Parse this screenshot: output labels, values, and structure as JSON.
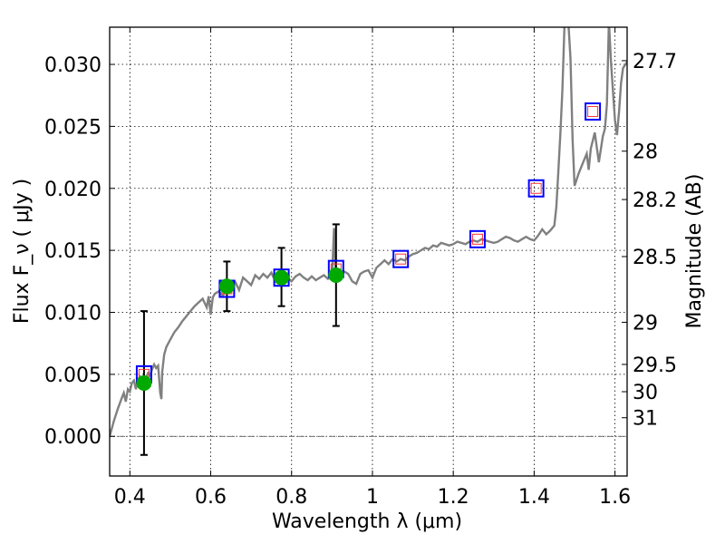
{
  "chart_data": {
    "type": "scatter",
    "xlabel": "Wavelength  λ (μm)",
    "ylabel": "Flux  F_ν  ( μJy )",
    "y2label": "Magnitude (AB)",
    "xlim": [
      0.35,
      1.63
    ],
    "ylim": [
      -0.0032,
      0.033
    ],
    "x_ticks": [
      0.4,
      0.6,
      0.8,
      1.0,
      1.2,
      1.4,
      1.6
    ],
    "x_tick_labels": [
      "0.4",
      "0.6",
      "0.8",
      "1",
      "1.2",
      "1.4",
      "1.6"
    ],
    "y_ticks": [
      0.0,
      0.005,
      0.01,
      0.015,
      0.02,
      0.025,
      0.03
    ],
    "y_tick_labels": [
      "0.000",
      "0.005",
      "0.010",
      "0.015",
      "0.020",
      "0.025",
      "0.030"
    ],
    "magnitude_ticks": [
      {
        "label": "27.7",
        "flux": 0.0303
      },
      {
        "label": "28",
        "flux": 0.023
      },
      {
        "label": "28.2",
        "flux": 0.0191
      },
      {
        "label": "28.5",
        "flux": 0.0145
      },
      {
        "label": "29",
        "flux": 0.0092
      },
      {
        "label": "29.5",
        "flux": 0.0058
      },
      {
        "label": "30",
        "flux": 0.0036
      },
      {
        "label": "31",
        "flux": 0.0015
      }
    ],
    "grid": true,
    "zero_line": true,
    "series": [
      {
        "kind": "model_spectrum",
        "color": "#808080",
        "points": [
          [
            0.35,
            0.0
          ],
          [
            0.36,
            0.0012
          ],
          [
            0.37,
            0.0022
          ],
          [
            0.38,
            0.0031
          ],
          [
            0.385,
            0.0035
          ],
          [
            0.39,
            0.0028
          ],
          [
            0.395,
            0.0038
          ],
          [
            0.4,
            0.0036
          ],
          [
            0.405,
            0.0043
          ],
          [
            0.41,
            0.0045
          ],
          [
            0.415,
            0.0038
          ],
          [
            0.42,
            0.0046
          ],
          [
            0.425,
            0.0048
          ],
          [
            0.43,
            0.0044
          ],
          [
            0.435,
            0.0042
          ],
          [
            0.44,
            0.0047
          ],
          [
            0.445,
            0.0051
          ],
          [
            0.45,
            0.0049
          ],
          [
            0.455,
            0.0054
          ],
          [
            0.46,
            0.0058
          ],
          [
            0.465,
            0.0055
          ],
          [
            0.47,
            0.0057
          ],
          [
            0.475,
            0.0035
          ],
          [
            0.478,
            0.003
          ],
          [
            0.48,
            0.0052
          ],
          [
            0.485,
            0.0066
          ],
          [
            0.49,
            0.0072
          ],
          [
            0.5,
            0.0078
          ],
          [
            0.51,
            0.0084
          ],
          [
            0.52,
            0.0088
          ],
          [
            0.53,
            0.0093
          ],
          [
            0.54,
            0.0097
          ],
          [
            0.55,
            0.0101
          ],
          [
            0.56,
            0.0105
          ],
          [
            0.57,
            0.0108
          ],
          [
            0.58,
            0.0111
          ],
          [
            0.59,
            0.0104
          ],
          [
            0.595,
            0.0113
          ],
          [
            0.6,
            0.0098
          ],
          [
            0.605,
            0.0112
          ],
          [
            0.61,
            0.0115
          ],
          [
            0.62,
            0.0117
          ],
          [
            0.63,
            0.0113
          ],
          [
            0.64,
            0.012
          ],
          [
            0.65,
            0.0122
          ],
          [
            0.66,
            0.0125
          ],
          [
            0.67,
            0.0118
          ],
          [
            0.68,
            0.0128
          ],
          [
            0.69,
            0.0125
          ],
          [
            0.7,
            0.0122
          ],
          [
            0.71,
            0.013
          ],
          [
            0.72,
            0.0127
          ],
          [
            0.73,
            0.0131
          ],
          [
            0.74,
            0.0128
          ],
          [
            0.75,
            0.0132
          ],
          [
            0.76,
            0.0125
          ],
          [
            0.77,
            0.0127
          ],
          [
            0.78,
            0.0131
          ],
          [
            0.79,
            0.0128
          ],
          [
            0.8,
            0.0125
          ],
          [
            0.81,
            0.0129
          ],
          [
            0.82,
            0.0131
          ],
          [
            0.83,
            0.0128
          ],
          [
            0.84,
            0.0126
          ],
          [
            0.85,
            0.0129
          ],
          [
            0.86,
            0.0126
          ],
          [
            0.87,
            0.0128
          ],
          [
            0.88,
            0.013
          ],
          [
            0.89,
            0.0127
          ],
          [
            0.9,
            0.0129
          ],
          [
            0.905,
            0.0168
          ],
          [
            0.91,
            0.0125
          ],
          [
            0.915,
            0.0132
          ],
          [
            0.92,
            0.0129
          ],
          [
            0.93,
            0.0133
          ],
          [
            0.94,
            0.0131
          ],
          [
            0.95,
            0.0125
          ],
          [
            0.96,
            0.0123
          ],
          [
            0.97,
            0.0131
          ],
          [
            0.98,
            0.0133
          ],
          [
            0.99,
            0.0134
          ],
          [
            1.0,
            0.0128
          ],
          [
            1.01,
            0.0136
          ],
          [
            1.02,
            0.0139
          ],
          [
            1.03,
            0.0142
          ],
          [
            1.04,
            0.0139
          ],
          [
            1.05,
            0.0143
          ],
          [
            1.06,
            0.0141
          ],
          [
            1.07,
            0.0143
          ],
          [
            1.08,
            0.0142
          ],
          [
            1.09,
            0.0145
          ],
          [
            1.1,
            0.0147
          ],
          [
            1.11,
            0.0148
          ],
          [
            1.12,
            0.015
          ],
          [
            1.13,
            0.0152
          ],
          [
            1.14,
            0.0151
          ],
          [
            1.15,
            0.0154
          ],
          [
            1.16,
            0.0153
          ],
          [
            1.17,
            0.0156
          ],
          [
            1.18,
            0.0155
          ],
          [
            1.19,
            0.0154
          ],
          [
            1.2,
            0.0155
          ],
          [
            1.21,
            0.0157
          ],
          [
            1.22,
            0.0156
          ],
          [
            1.23,
            0.0155
          ],
          [
            1.24,
            0.0157
          ],
          [
            1.25,
            0.0158
          ],
          [
            1.26,
            0.0157
          ],
          [
            1.27,
            0.0159
          ],
          [
            1.28,
            0.0158
          ],
          [
            1.29,
            0.0157
          ],
          [
            1.3,
            0.0156
          ],
          [
            1.31,
            0.0157
          ],
          [
            1.32,
            0.0159
          ],
          [
            1.33,
            0.0161
          ],
          [
            1.34,
            0.016
          ],
          [
            1.35,
            0.0158
          ],
          [
            1.36,
            0.0157
          ],
          [
            1.37,
            0.0159
          ],
          [
            1.38,
            0.0161
          ],
          [
            1.39,
            0.0159
          ],
          [
            1.4,
            0.0158
          ],
          [
            1.41,
            0.0162
          ],
          [
            1.42,
            0.0167
          ],
          [
            1.43,
            0.0163
          ],
          [
            1.44,
            0.0166
          ],
          [
            1.45,
            0.017
          ],
          [
            1.455,
            0.0185
          ],
          [
            1.46,
            0.0215
          ],
          [
            1.465,
            0.0245
          ],
          [
            1.47,
            0.028
          ],
          [
            1.475,
            0.0332
          ],
          [
            1.48,
            0.0335
          ],
          [
            1.485,
            0.0332
          ],
          [
            1.49,
            0.0305
          ],
          [
            1.495,
            0.024
          ],
          [
            1.5,
            0.0202
          ],
          [
            1.51,
            0.0212
          ],
          [
            1.52,
            0.022
          ],
          [
            1.53,
            0.0228
          ],
          [
            1.535,
            0.0215
          ],
          [
            1.54,
            0.0232
          ],
          [
            1.55,
            0.0245
          ],
          [
            1.56,
            0.0221
          ],
          [
            1.57,
            0.0242
          ],
          [
            1.575,
            0.0248
          ],
          [
            1.58,
            0.0268
          ],
          [
            1.585,
            0.0335
          ],
          [
            1.59,
            0.0302
          ],
          [
            1.6,
            0.0255
          ],
          [
            1.605,
            0.0243
          ],
          [
            1.61,
            0.0262
          ],
          [
            1.615,
            0.0285
          ],
          [
            1.62,
            0.0297
          ],
          [
            1.63,
            0.0302
          ]
        ]
      },
      {
        "kind": "model_photometry_blue_squares",
        "color": "#0000ff",
        "x": [
          0.435,
          0.64,
          0.775,
          0.91,
          1.07,
          1.26,
          1.405,
          1.545
        ],
        "y": [
          0.005,
          0.0119,
          0.0128,
          0.0135,
          0.0143,
          0.0159,
          0.02,
          0.0262
        ]
      },
      {
        "kind": "model_photometry_red_squares",
        "color": "#ff3333",
        "x": [
          0.435,
          0.64,
          0.775,
          0.91,
          1.07,
          1.26,
          1.405,
          1.545
        ],
        "y": [
          0.005,
          0.0119,
          0.0128,
          0.0135,
          0.0143,
          0.0159,
          0.02,
          0.0262
        ]
      },
      {
        "kind": "observed_points",
        "color": "#00aa00",
        "x": [
          0.435,
          0.64,
          0.775,
          0.91
        ],
        "y": [
          0.0043,
          0.0121,
          0.0128,
          0.013
        ],
        "yerr_low": [
          -0.0015,
          0.0101,
          0.0105,
          0.0089
        ],
        "yerr_high": [
          0.0101,
          0.0141,
          0.0152,
          0.0171
        ]
      }
    ]
  }
}
